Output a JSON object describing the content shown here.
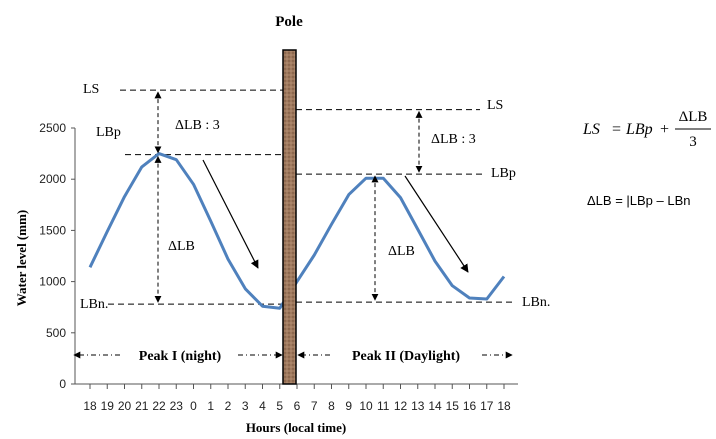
{
  "chart_data": {
    "type": "line",
    "title": "Pole",
    "xlabel": "Hours (local time)",
    "ylabel": "Water level (mm)",
    "ylim": [
      0,
      2500
    ],
    "yticks": [
      0,
      500,
      1000,
      1500,
      2000,
      2500
    ],
    "grid": false,
    "categories": [
      "18",
      "19",
      "20",
      "21",
      "22",
      "23",
      "0",
      "1",
      "2",
      "3",
      "4",
      "5",
      "6",
      "7",
      "8",
      "9",
      "10",
      "11",
      "12",
      "13",
      "14",
      "15",
      "16",
      "17",
      "18"
    ],
    "tick_labels": [
      "18",
      "19",
      "20",
      "21",
      "22",
      "23",
      "0",
      "1",
      "2",
      "3",
      "4",
      "5",
      "6",
      "7",
      "8",
      "9",
      "10",
      "11",
      "12",
      "13",
      "14",
      "15",
      "16",
      "17",
      "18"
    ],
    "series": [
      {
        "color": "#4f81bd",
        "values": [
          1140,
          1490,
          1830,
          2120,
          2250,
          2190,
          1950,
          1590,
          1220,
          930,
          760,
          740,
          1000,
          1260,
          1560,
          1850,
          2010,
          2010,
          1820,
          1510,
          1200,
          960,
          840,
          830,
          1050
        ]
      }
    ],
    "labels": {
      "ls_left": "LS",
      "lbp_left": "LBp",
      "delta_lb_3_left": "ΔLB : 3",
      "delta_lb_left": "ΔLB",
      "lbn_left": "LBn.",
      "ls_right": "LS",
      "lbp_right": "LBp",
      "delta_lb_3_right": "ΔLB : 3",
      "delta_lb_right": "ΔLB",
      "lbn_right": "LBn."
    },
    "periods": {
      "peak1": "Peak I (night)",
      "peak2": "Peak II (Daylight)"
    },
    "formulas": {
      "ls_lhs": "LS",
      "ls_eq": "=",
      "ls_lbp": "LBp",
      "ls_plus": "+",
      "ls_num": "ΔLB",
      "ls_den": "3",
      "delta_eq": "ΔLB = |LBp – LBn"
    },
    "levels": {
      "ls_left": 2870,
      "lbp_left": 2240,
      "lbn_left": 780,
      "ls_right": 2680,
      "lbp_right": 2050,
      "lbn_right": 800
    }
  }
}
